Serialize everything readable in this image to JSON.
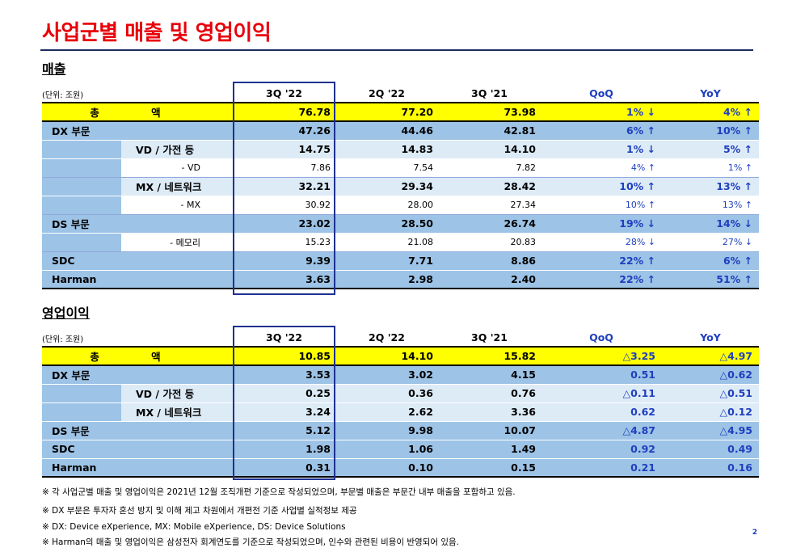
{
  "title": "사업군별 매출 및 영업이익",
  "sales": {
    "section_title": "매출",
    "unit": "(단위: 조원)",
    "headers": [
      "3Q '22",
      "2Q '22",
      "3Q '21",
      "QoQ",
      "YoY"
    ],
    "rows": [
      {
        "label": "총     액",
        "v1": "76.78",
        "v2": "77.20",
        "v3": "73.98",
        "qoq": "1% ↓",
        "yoy": "4% ↑"
      },
      {
        "label": "DX 부문",
        "v1": "47.26",
        "v2": "44.46",
        "v3": "42.81",
        "qoq": "6% ↑",
        "yoy": "10% ↑"
      },
      {
        "label": "VD / 가전 등",
        "v1": "14.75",
        "v2": "14.83",
        "v3": "14.10",
        "qoq": "1% ↓",
        "yoy": "5% ↑"
      },
      {
        "label": "- VD",
        "v1": "7.86",
        "v2": "7.54",
        "v3": "7.82",
        "qoq": "4% ↑",
        "yoy": "1% ↑"
      },
      {
        "label": "MX / 네트워크",
        "v1": "32.21",
        "v2": "29.34",
        "v3": "28.42",
        "qoq": "10% ↑",
        "yoy": "13% ↑"
      },
      {
        "label": "- MX",
        "v1": "30.92",
        "v2": "28.00",
        "v3": "27.34",
        "qoq": "10% ↑",
        "yoy": "13% ↑"
      },
      {
        "label": "DS 부문",
        "v1": "23.02",
        "v2": "28.50",
        "v3": "26.74",
        "qoq": "19% ↓",
        "yoy": "14% ↓"
      },
      {
        "label": "- 메모리",
        "v1": "15.23",
        "v2": "21.08",
        "v3": "20.83",
        "qoq": "28% ↓",
        "yoy": "27% ↓"
      },
      {
        "label": "SDC",
        "v1": "9.39",
        "v2": "7.71",
        "v3": "8.86",
        "qoq": "22% ↑",
        "yoy": "6% ↑"
      },
      {
        "label": "Harman",
        "v1": "3.63",
        "v2": "2.98",
        "v3": "2.40",
        "qoq": "22% ↑",
        "yoy": "51% ↑"
      }
    ]
  },
  "op": {
    "section_title": "영업이익",
    "unit": "(단위: 조원)",
    "headers": [
      "3Q '22",
      "2Q '22",
      "3Q '21",
      "QoQ",
      "YoY"
    ],
    "rows": [
      {
        "label": "총     액",
        "v1": "10.85",
        "v2": "14.10",
        "v3": "15.82",
        "qoq": "△3.25",
        "yoy": "△4.97"
      },
      {
        "label": "DX 부문",
        "v1": "3.53",
        "v2": "3.02",
        "v3": "4.15",
        "qoq": "0.51",
        "yoy": "△0.62"
      },
      {
        "label": "VD / 가전 등",
        "v1": "0.25",
        "v2": "0.36",
        "v3": "0.76",
        "qoq": "△0.11",
        "yoy": "△0.51"
      },
      {
        "label": "MX / 네트워크",
        "v1": "3.24",
        "v2": "2.62",
        "v3": "3.36",
        "qoq": "0.62",
        "yoy": "△0.12"
      },
      {
        "label": "DS 부문",
        "v1": "5.12",
        "v2": "9.98",
        "v3": "10.07",
        "qoq": "△4.87",
        "yoy": "△4.95"
      },
      {
        "label": "SDC",
        "v1": "1.98",
        "v2": "1.06",
        "v3": "1.49",
        "qoq": "0.92",
        "yoy": "0.49"
      },
      {
        "label": "Harman",
        "v1": "0.31",
        "v2": "0.10",
        "v3": "0.15",
        "qoq": "0.21",
        "yoy": "0.16"
      }
    ]
  },
  "notes": [
    "※ 각 사업군별 매출 및 영업이익은 2021년 12월 조직개편 기준으로 작성되었으며, 부문별 매출은 부문간 내부 매출을 포함하고 있음.",
    "※ DX 부문은 투자자 혼선 방지 및 이해 제고 차원에서 개편전 기준 사업별 실적정보 제공",
    "※ DX: Device eXperience, MX: Mobile eXperience, DS: Device Solutions",
    "※ Harman의 매출 및 영업이익은 삼성전자 회계연도를 기준으로 작성되었으며, 인수와 관련된 비용이 반영되어 있음."
  ],
  "page_number": "2"
}
